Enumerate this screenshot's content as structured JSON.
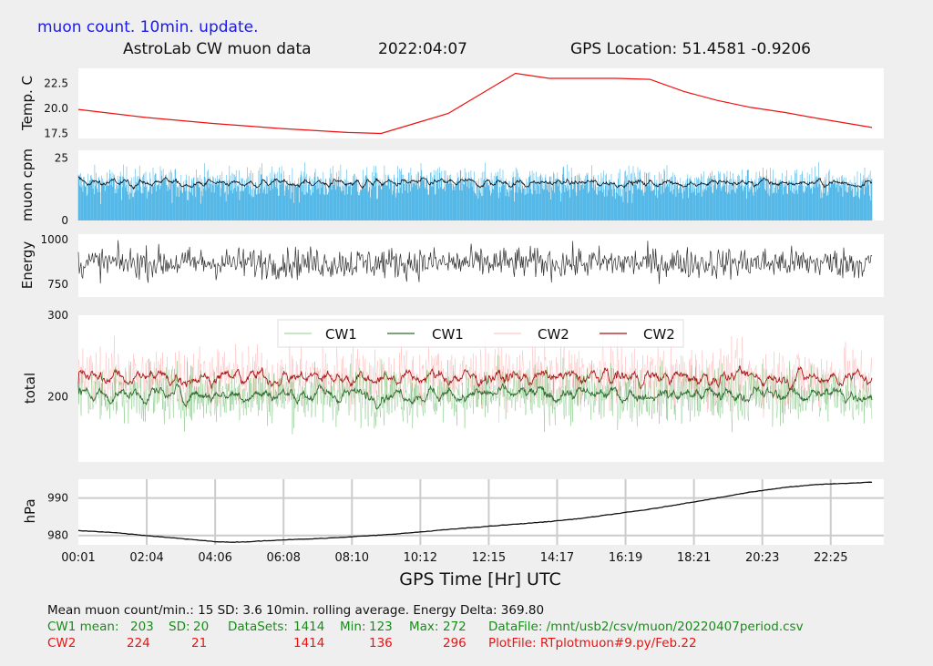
{
  "header": {
    "update_note": "muon count.  10min. update.",
    "title": "AstroLab CW muon data",
    "date": "2022:04:07",
    "gps": "GPS Location: 51.4581    -0.9206"
  },
  "colors": {
    "background": "#efefef",
    "temperature": "#ee1111",
    "muon_bars": "#55b8e6",
    "muon_avg": "#111111",
    "energy": "#333333",
    "cw1_raw": "#4caf50",
    "cw1_avg": "#2e6b2e",
    "cw2_raw": "#ff9999",
    "cw2_avg": "#aa1111",
    "pressure": "#111111",
    "footer_black": "#111111",
    "footer_green": "#1a8c1a",
    "footer_red": "#ee1111",
    "header_blue": "#1a1aee"
  },
  "chart_data": [
    {
      "type": "line",
      "ylabel": "Temp. C",
      "yticks": [
        "17.5",
        "20.0",
        "22.5"
      ],
      "ylim": [
        17,
        24
      ],
      "x": [
        0,
        2,
        4,
        6,
        8,
        9,
        10,
        11,
        12,
        13,
        14,
        15,
        16,
        17,
        18,
        19,
        20,
        21,
        22,
        23.6
      ],
      "values": [
        19.9,
        19.1,
        18.5,
        18.0,
        17.6,
        17.5,
        18.5,
        19.5,
        21.5,
        23.5,
        23.0,
        23.0,
        23.0,
        22.9,
        21.7,
        20.8,
        20.1,
        19.6,
        19.0,
        18.1
      ],
      "grid": false
    },
    {
      "type": "bar",
      "ylabel": "muon cpm",
      "yticks": [
        "0",
        "25"
      ],
      "ylim": [
        0,
        28
      ],
      "mean": 15,
      "sd": 3.6,
      "rolling_avg_level": 15,
      "grid": false
    },
    {
      "type": "line",
      "ylabel": "Energy",
      "yticks": [
        "750",
        "1000"
      ],
      "ylim": [
        680,
        1030
      ],
      "center": 870,
      "spread": 55,
      "grid": false
    },
    {
      "type": "line",
      "ylabel": "total",
      "yticks": [
        "200",
        "300"
      ],
      "ylim": [
        120,
        300
      ],
      "legend": [
        "CW1",
        "CW1",
        "CW2",
        "CW2"
      ],
      "legend_position": "top-center",
      "series": [
        {
          "name": "CW1",
          "mean": 203,
          "sd": 20
        },
        {
          "name": "CW2",
          "mean": 224,
          "sd": 21
        }
      ],
      "grid": false
    },
    {
      "type": "line",
      "ylabel": "hPa",
      "yticks": [
        "980",
        "990"
      ],
      "ylim": [
        977.5,
        995
      ],
      "x": [
        0,
        1,
        2,
        3,
        4,
        4.5,
        5,
        6,
        7,
        8,
        9,
        10,
        11,
        12,
        13,
        14,
        15,
        16,
        17,
        18,
        19,
        20,
        21,
        22,
        23.6
      ],
      "values": [
        981.3,
        980.8,
        980.0,
        979.2,
        978.4,
        978.2,
        978.3,
        978.8,
        979.1,
        979.6,
        980.1,
        980.8,
        981.6,
        982.3,
        983.0,
        983.7,
        984.6,
        985.8,
        987.0,
        988.5,
        990.0,
        991.6,
        992.8,
        993.6,
        994.2
      ],
      "xlabel": "GPS Time  [Hr] UTC",
      "xticks": [
        "00:01",
        "02:04",
        "04:06",
        "06:08",
        "08:10",
        "10:12",
        "12:15",
        "14:17",
        "16:19",
        "18:21",
        "20:23",
        "22:25"
      ],
      "grid": true
    }
  ],
  "footer": {
    "line1": "Mean muon count/min.: 15  SD: 3.6   10min. rolling average.    Energy Delta:  369.80",
    "cw1": {
      "label": "CW1 mean:",
      "mean": "203",
      "sd_label": "SD:",
      "sd": "20",
      "ds_label": "DataSets:",
      "ds": "1414",
      "min_label": "Min:",
      "min": "123",
      "max_label": "Max:",
      "max": "272",
      "file": "DataFile: /mnt/usb2/csv/muon/20220407period.csv"
    },
    "cw2": {
      "label": "CW2",
      "mean": "224",
      "sd": "21",
      "ds": "1414",
      "min": "136",
      "max": "296",
      "file": "PlotFile: RTplotmuon#9.py/Feb.22"
    }
  }
}
